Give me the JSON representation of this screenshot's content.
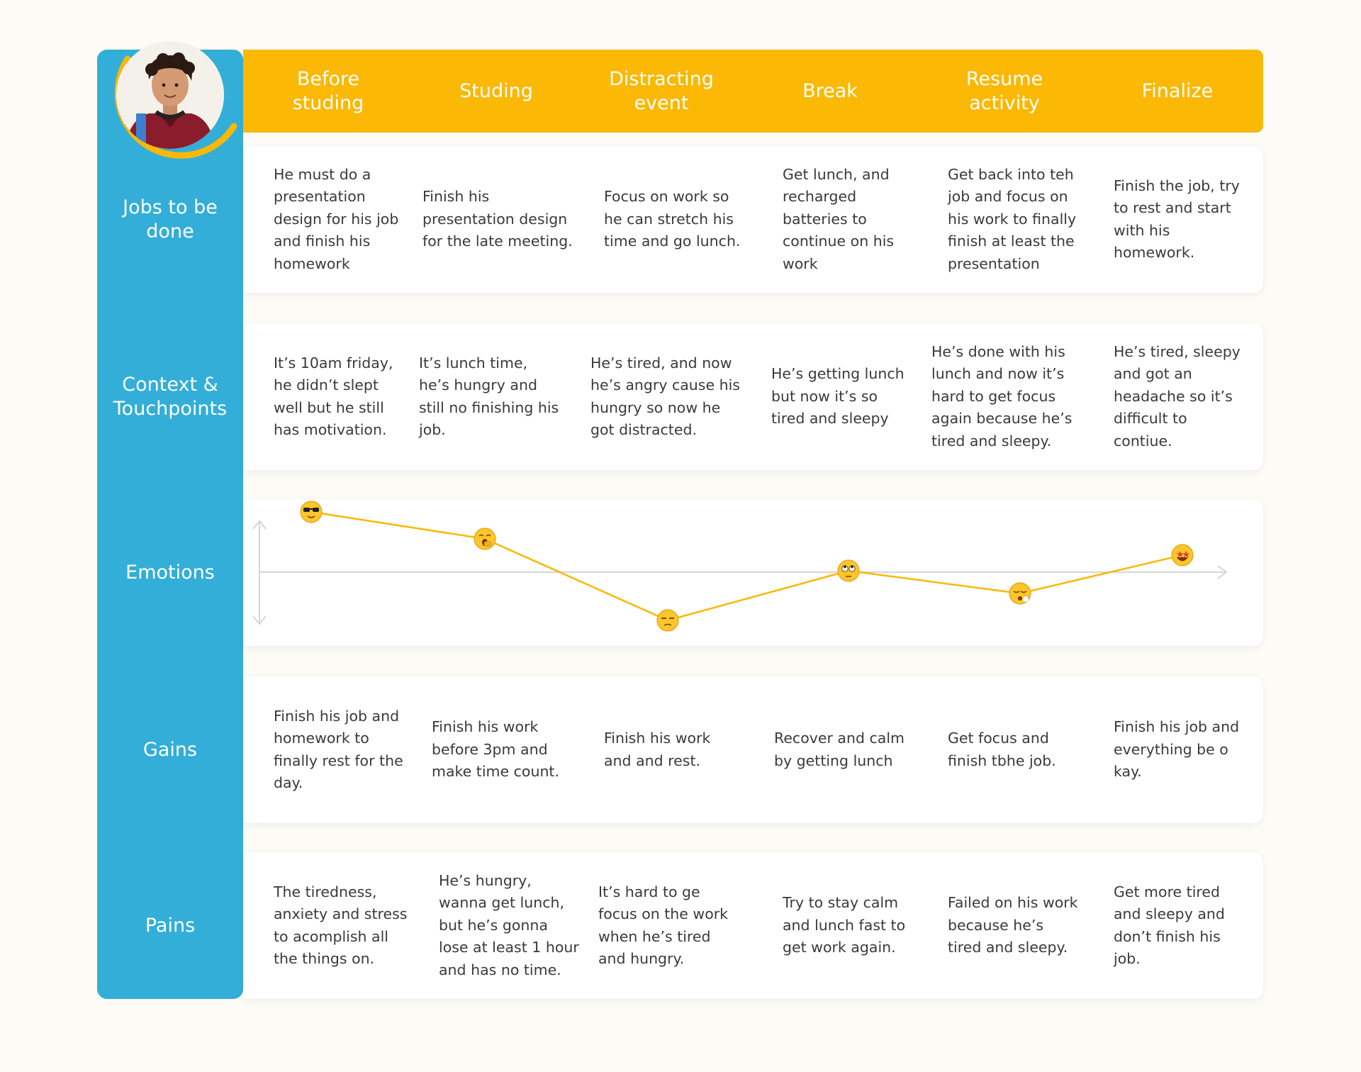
{
  "stages": [
    "Before studing",
    "Studing",
    "Distracting event",
    "Break",
    "Resume activity",
    "Finalize"
  ],
  "rows": {
    "jobs": {
      "label": "Jobs to be done",
      "cells": [
        "He must do a presentation design for his job and finish his homework",
        "Finish his presentation design for the late meeting.",
        "Focus on work so he can stretch his time and go lunch.",
        "Get lunch, and recharged batteries to continue on his work",
        "Get back into teh job and focus on his work to finally finish at least the presentation",
        "Finish the job, try to rest and start with his homework."
      ]
    },
    "context": {
      "label": "Context & Touchpoints",
      "cells": [
        "It’s 10am friday, he didn’t slept well but he still has motivation.",
        "It’s lunch time, he’s hungry and still no finishing his job.",
        "He’s tired, and now he’s angry cause his hungry so now he got distracted.",
        "He’s getting lunch but now it’s so tired and sleepy",
        "He’s done with his lunch and now it’s hard to get focus again because he’s tired and sleepy.",
        "He’s tired, sleepy and got an headache so it’s difficult to contiue."
      ]
    },
    "emotions": {
      "label": "Emotions"
    },
    "gains": {
      "label": "Gains",
      "cells": [
        "Finish his job and homework to finally rest for the day.",
        "Finish his work before 3pm and make time count.",
        "Finish his work and and rest.",
        "Recover and calm by getting lunch",
        "Get focus and finish tbhe job.",
        "Finish his job and everything be o kay."
      ]
    },
    "pains": {
      "label": "Pains",
      "cells": [
        "The tiredness, anxiety and stress to acomplish all the things on.",
        "He’s hungry, wanna get lunch, but he’s gonna lose at least 1 hour and has no time.",
        "It’s hard to ge focus on the work when he’s tired and hungry.",
        "Try to stay calm and lunch fast to get work again.",
        "Failed on his work because he’s tired and sleepy.",
        "Get more tired and sleepy and don’t finish his job."
      ]
    }
  },
  "chart_data": {
    "type": "line",
    "title": "Emotions",
    "categories": [
      "Before studing",
      "Studing",
      "Distracting event",
      "Break",
      "Resume activity",
      "Finalize"
    ],
    "values": [
      0.85,
      0.47,
      -0.68,
      0.02,
      -0.3,
      0.24
    ],
    "ylim": [
      -1,
      1
    ],
    "markers": [
      "cool",
      "yawning",
      "unamused",
      "eye-roll",
      "dizzy",
      "star-struck"
    ]
  },
  "colors": {
    "background": "#fcfbf5",
    "sidebar": "#33aed8",
    "header": "#fbb804",
    "line": "#fbb804",
    "card": "#ffffff",
    "text": "#3a3a3a"
  }
}
